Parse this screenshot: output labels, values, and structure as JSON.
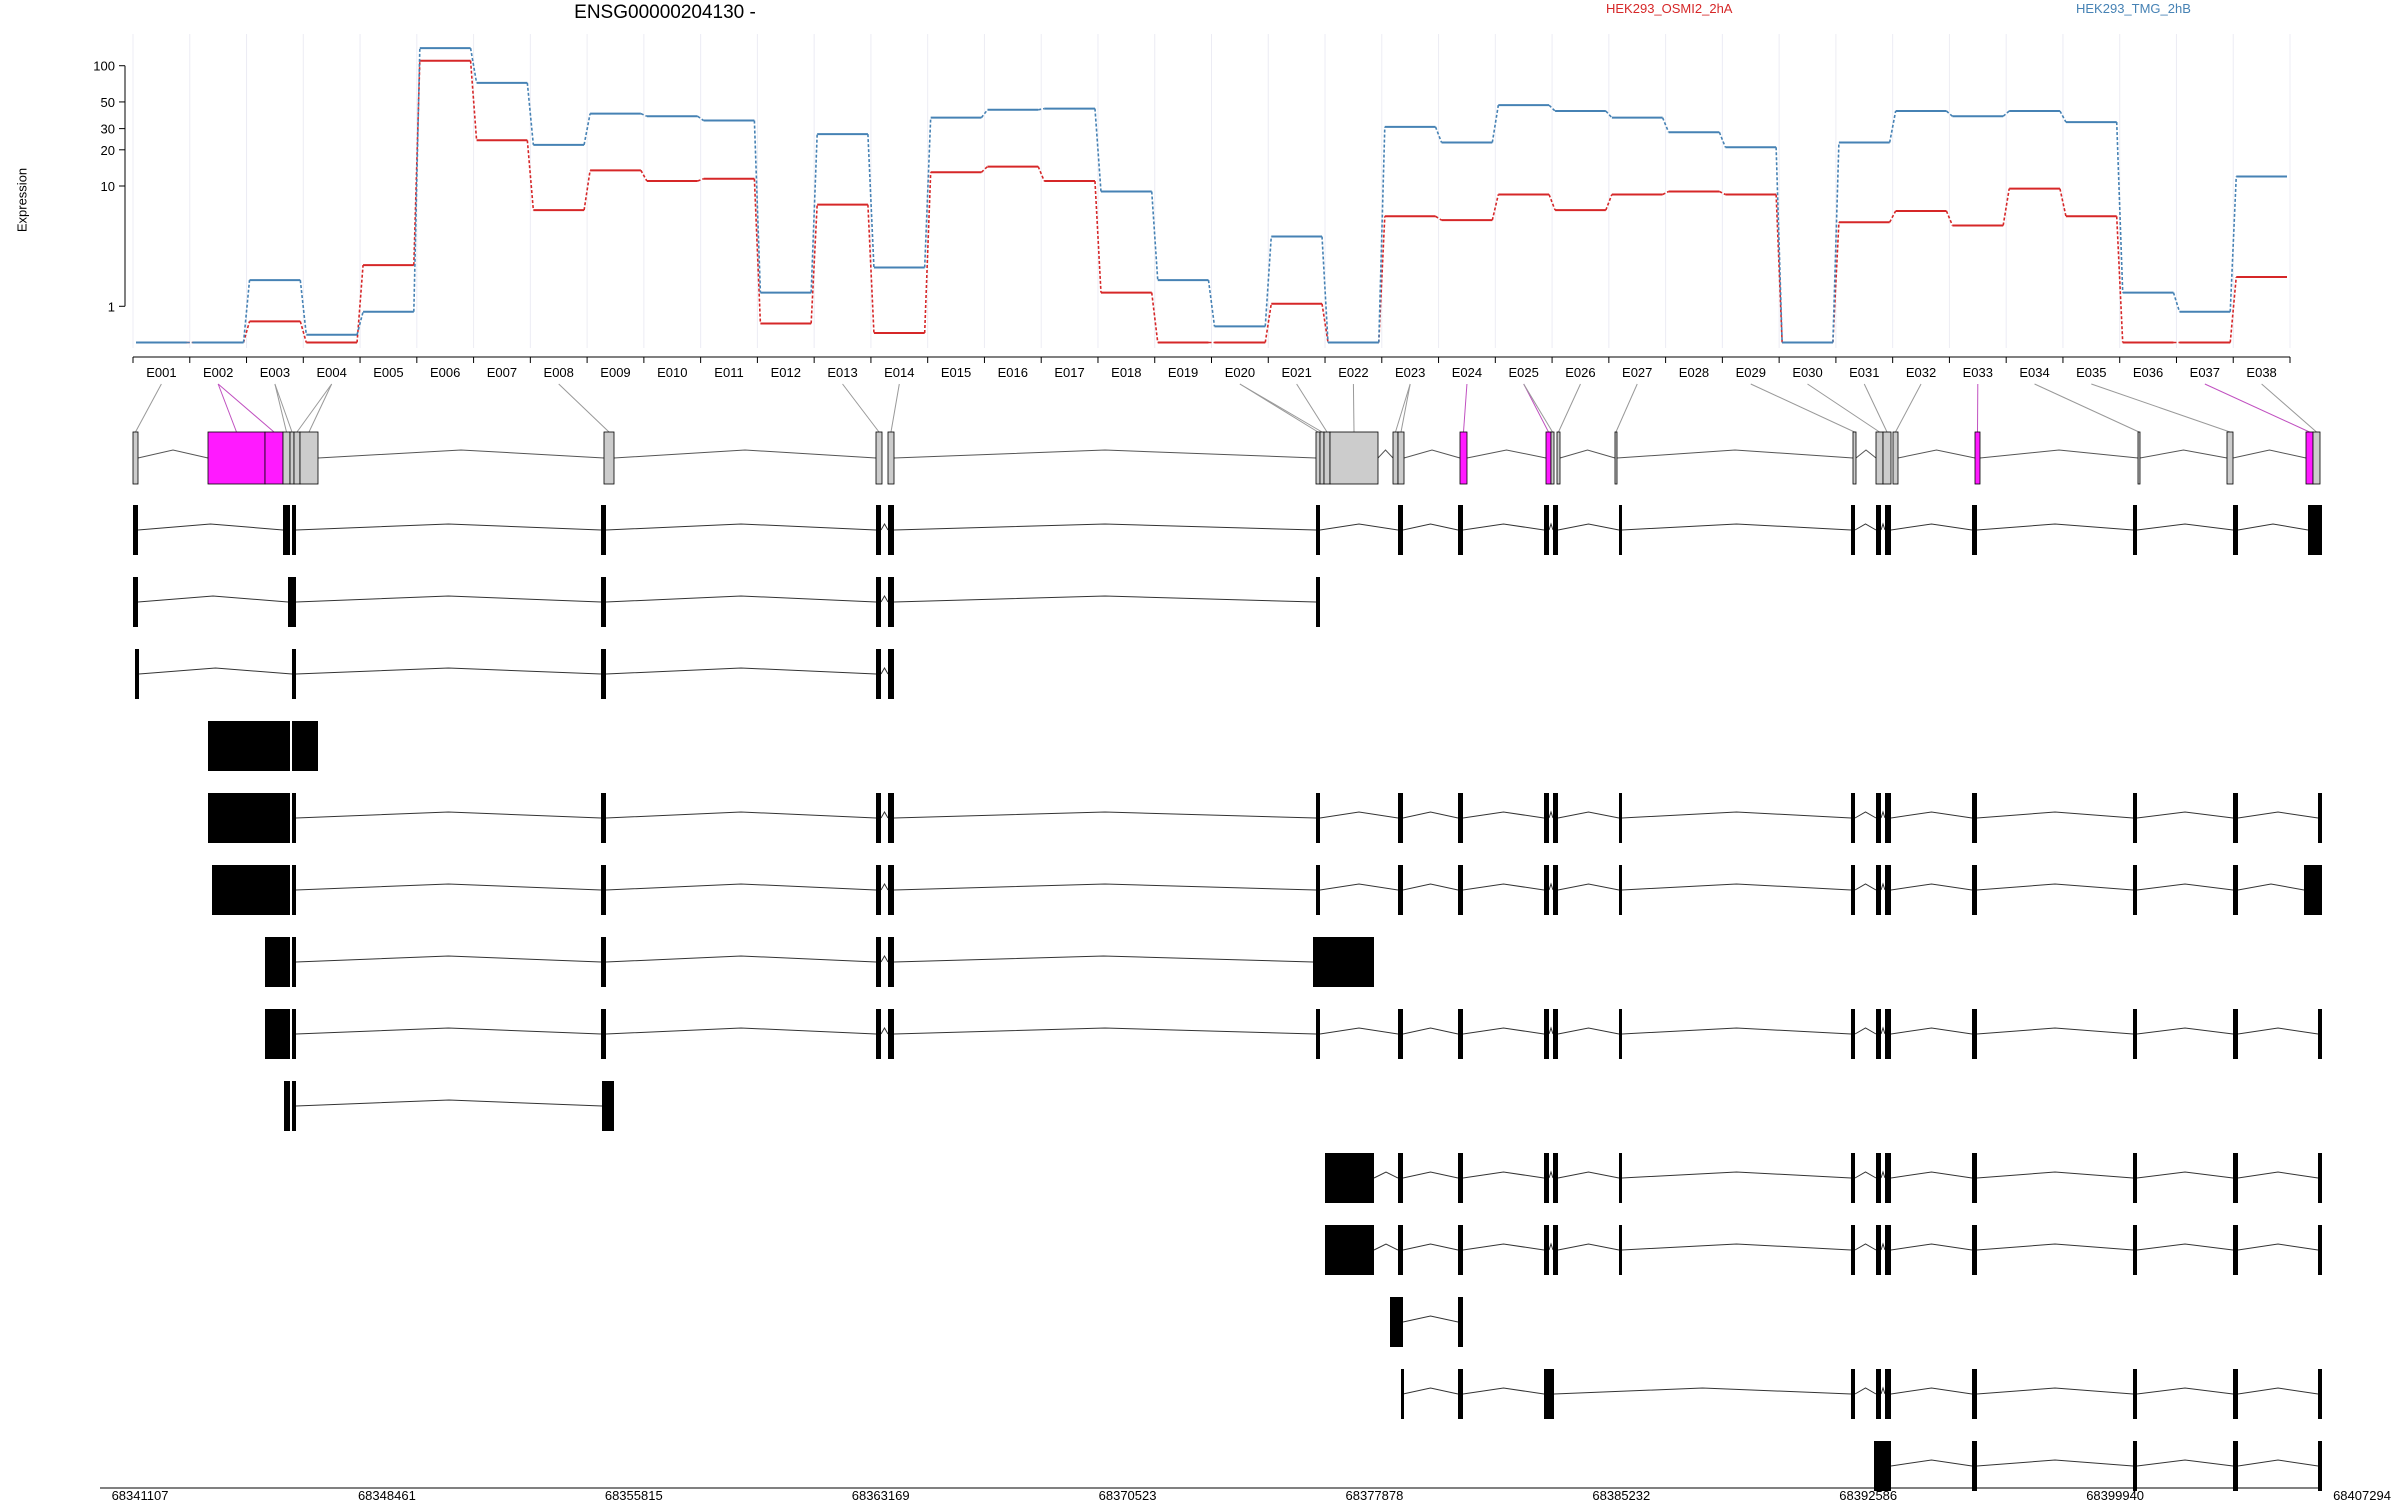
{
  "chart_data": {
    "type": "line",
    "title": "ENSG00000204130 -",
    "ylabel": "Expression",
    "y_scale": "log",
    "y_ticks": [
      1,
      10,
      20,
      30,
      50,
      100
    ],
    "y_min": 0.45,
    "y_max": 170,
    "grid": "vertical",
    "legend_position": "top-right",
    "x_axis_ticks": [
      "68341107",
      "68348461",
      "68355815",
      "68363169",
      "68370523",
      "68377878",
      "68385232",
      "68392586",
      "68399940",
      "68407294"
    ],
    "categories": [
      "E001",
      "E002",
      "E003",
      "E004",
      "E005",
      "E006",
      "E007",
      "E008",
      "E009",
      "E010",
      "E011",
      "E012",
      "E013",
      "E014",
      "E015",
      "E016",
      "E017",
      "E018",
      "E019",
      "E020",
      "E021",
      "E022",
      "E023",
      "E024",
      "E025",
      "E026",
      "E027",
      "E028",
      "E029",
      "E030",
      "E031",
      "E032",
      "E033",
      "E034",
      "E035",
      "E036",
      "E037",
      "E038"
    ],
    "series": [
      {
        "name": "HEK293_OSMI2_2hA",
        "color": "#d62728",
        "values": [
          0.5,
          0.5,
          0.75,
          0.5,
          2.2,
          110,
          24,
          6.3,
          13.5,
          11,
          11.5,
          0.72,
          7,
          0.6,
          13,
          14.5,
          11,
          1.3,
          0.5,
          0.5,
          1.05,
          0.5,
          5.6,
          5.2,
          8.5,
          6.3,
          8.5,
          9,
          8.5,
          0.5,
          5,
          6.2,
          4.7,
          9.5,
          5.6,
          0.5,
          0.5,
          1.75
        ]
      },
      {
        "name": "HEK293_TMG_2hB",
        "color": "#4682b4",
        "values": [
          0.5,
          0.5,
          1.65,
          0.58,
          0.9,
          140,
          72,
          22,
          40,
          38,
          35,
          1.3,
          27,
          2.1,
          37,
          43,
          44,
          9,
          1.65,
          0.68,
          3.8,
          0.5,
          31,
          23,
          47,
          42,
          37,
          28,
          21,
          0.5,
          23,
          42,
          38,
          42,
          34,
          1.3,
          0.9,
          12
        ]
      }
    ],
    "exon_model": {
      "fill_color": "#cccccc",
      "highlight_color": "#ff1aff",
      "highlighted_exons": [
        "E002",
        "E024",
        "E025",
        "E033",
        "E037"
      ]
    },
    "transcripts_count": 14
  }
}
